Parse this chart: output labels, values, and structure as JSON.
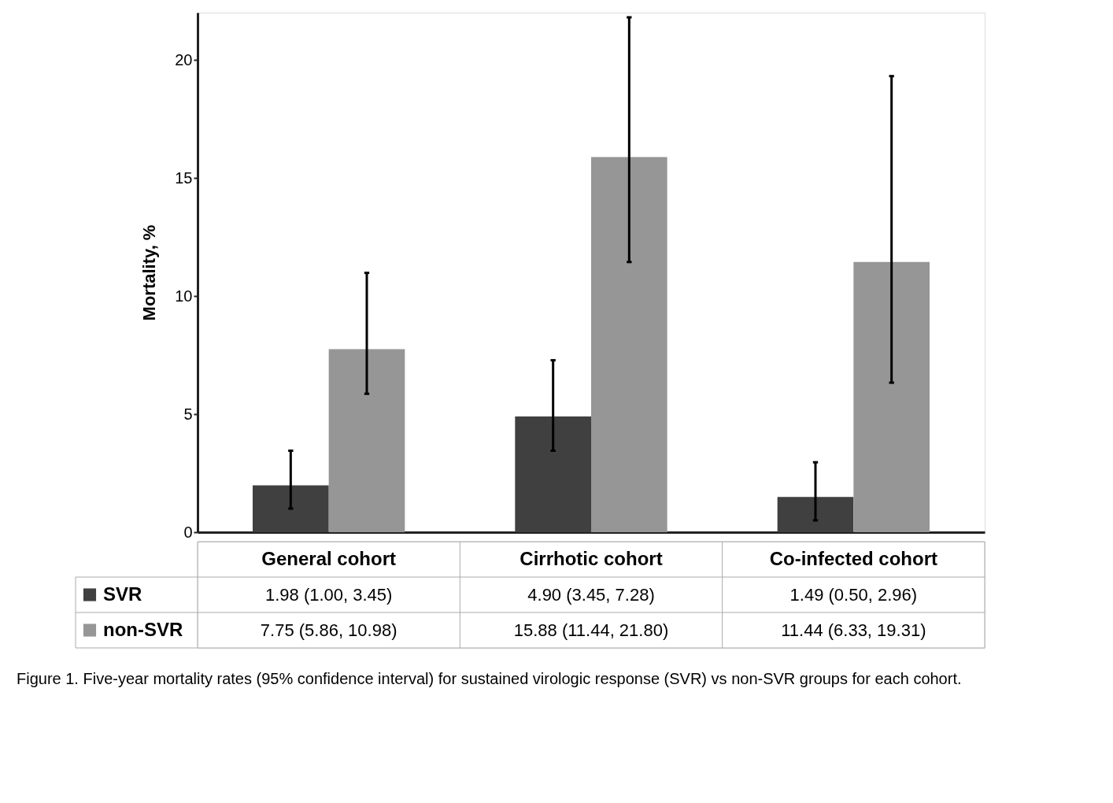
{
  "chart_data": {
    "type": "bar",
    "categories": [
      "General cohort",
      "Cirrhotic cohort",
      "Co-infected cohort"
    ],
    "ylabel": "Mortality, %",
    "ylim": [
      0,
      22
    ],
    "yticks": [
      0,
      5,
      10,
      15,
      20
    ],
    "grid": false,
    "legend": "bottom",
    "series": [
      {
        "name": "SVR",
        "color": "#404040",
        "values": [
          1.98,
          4.9,
          1.49
        ],
        "errors": [
          [
            1.0,
            3.45
          ],
          [
            3.45,
            7.28
          ],
          [
            0.5,
            2.96
          ]
        ],
        "value_labels": [
          "1.98 (1.00, 3.45)",
          "4.90 (3.45, 7.28)",
          "1.49 (0.50, 2.96)"
        ]
      },
      {
        "name": "non-SVR",
        "color": "#969696",
        "values": [
          7.75,
          15.88,
          11.44
        ],
        "errors": [
          [
            5.86,
            10.98
          ],
          [
            11.44,
            21.8
          ],
          [
            6.33,
            19.31
          ]
        ],
        "value_labels": [
          "7.75 (5.86, 10.98)",
          "15.88 (11.44, 21.80)",
          "11.44 (6.33, 19.31)"
        ]
      }
    ],
    "annotations": [
      "Figure 1.    Five-year mortality rates (95% confidence interval) for sustained virologic response (SVR) vs non-SVR groups for each cohort."
    ]
  }
}
